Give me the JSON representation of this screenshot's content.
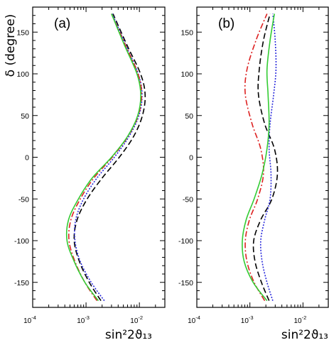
{
  "chart_data": [
    {
      "type": "line",
      "panel_label": "(a)",
      "xlabel": "sin²2ϑ₁₃",
      "ylabel": "δ (degree)",
      "xscale": "log",
      "xlim": [
        0.0001,
        0.03
      ],
      "ylim": [
        -180,
        180
      ],
      "x_ticks": [
        {
          "base": "10",
          "exp": "-4"
        },
        {
          "base": "10",
          "exp": "-3"
        },
        {
          "base": "10",
          "exp": "-2"
        }
      ],
      "y_ticks": [
        -150,
        -100,
        -50,
        0,
        50,
        100,
        150
      ],
      "grid": false,
      "series": [
        {
          "style": "dashed",
          "color": "#000000",
          "x": [
            0.0019,
            0.00115,
            0.00075,
            0.0006,
            0.00068,
            0.00105,
            0.002,
            0.0042,
            0.0078,
            0.0114,
            0.0128,
            0.0105,
            0.0058,
            0.0032
          ],
          "y": [
            -172,
            -150,
            -125,
            -100,
            -75,
            -50,
            -25,
            0,
            25,
            50,
            75,
            100,
            135,
            172
          ]
        },
        {
          "style": "dotted",
          "color": "#2a2adc",
          "x": [
            0.0022,
            0.00125,
            0.00078,
            0.00062,
            0.00064,
            0.0009,
            0.0016,
            0.0034,
            0.0064,
            0.0098,
            0.0112,
            0.0095,
            0.0055,
            0.0031
          ],
          "y": [
            -172,
            -150,
            -125,
            -100,
            -75,
            -50,
            -25,
            0,
            25,
            50,
            75,
            100,
            135,
            172
          ]
        },
        {
          "style": "dash-dot",
          "color": "#dd2222",
          "x": [
            0.0016,
            0.00095,
            0.00062,
            0.00048,
            0.00052,
            0.00078,
            0.0014,
            0.0031,
            0.0061,
            0.0095,
            0.011,
            0.0094,
            0.0054,
            0.003
          ],
          "y": [
            -172,
            -150,
            -125,
            -100,
            -75,
            -50,
            -25,
            0,
            25,
            50,
            75,
            100,
            135,
            172
          ]
        },
        {
          "style": "solid",
          "color": "#33cc33",
          "x": [
            0.0017,
            0.00095,
            0.0006,
            0.00044,
            0.00047,
            0.00072,
            0.0013,
            0.003,
            0.006,
            0.0093,
            0.0106,
            0.009,
            0.0052,
            0.003
          ],
          "y": [
            -172,
            -150,
            -125,
            -100,
            -75,
            -50,
            -25,
            0,
            25,
            50,
            75,
            100,
            135,
            172
          ]
        }
      ]
    },
    {
      "type": "line",
      "panel_label": "(b)",
      "xlabel": "sin²2ϑ₁₃",
      "ylabel": "",
      "xscale": "log",
      "xlim": [
        0.0001,
        0.03
      ],
      "ylim": [
        -180,
        180
      ],
      "x_ticks": [
        {
          "base": "10",
          "exp": "-4"
        },
        {
          "base": "10",
          "exp": "-3"
        },
        {
          "base": "10",
          "exp": "-2"
        }
      ],
      "y_ticks": [
        -150,
        -100,
        -50,
        0,
        50,
        100,
        150
      ],
      "grid": false,
      "series": [
        {
          "style": "dashed",
          "color": "#000000",
          "x": [
            0.0023,
            0.00165,
            0.00125,
            0.00118,
            0.0016,
            0.0026,
            0.0033,
            0.0029,
            0.0019,
            0.00145,
            0.0015,
            0.0018,
            0.0024
          ],
          "y": [
            -172,
            -150,
            -125,
            -100,
            -75,
            -50,
            -20,
            10,
            40,
            75,
            105,
            140,
            172
          ]
        },
        {
          "style": "dotted",
          "color": "#2a2adc",
          "x": [
            0.0027,
            0.0021,
            0.0017,
            0.0016,
            0.0019,
            0.0024,
            0.0025,
            0.0023,
            0.0024,
            0.0028,
            0.0031,
            0.003,
            0.0027
          ],
          "y": [
            -172,
            -150,
            -125,
            -100,
            -75,
            -50,
            -20,
            10,
            40,
            75,
            105,
            140,
            172
          ]
        },
        {
          "style": "dash-dot",
          "color": "#dd2222",
          "x": [
            0.0019,
            0.0012,
            0.00088,
            0.00082,
            0.00098,
            0.0014,
            0.0018,
            0.0016,
            0.0011,
            0.00082,
            0.00088,
            0.0013,
            0.0021
          ],
          "y": [
            -172,
            -150,
            -125,
            -100,
            -75,
            -50,
            -20,
            10,
            40,
            75,
            105,
            140,
            172
          ]
        },
        {
          "style": "solid",
          "color": "#33cc33",
          "x": [
            0.0021,
            0.00115,
            0.00078,
            0.00072,
            0.00085,
            0.0012,
            0.0017,
            0.0021,
            0.0023,
            0.0022,
            0.0021,
            0.0024,
            0.0029
          ],
          "y": [
            -172,
            -150,
            -125,
            -100,
            -75,
            -50,
            -20,
            10,
            40,
            75,
            105,
            140,
            172
          ]
        }
      ]
    }
  ]
}
